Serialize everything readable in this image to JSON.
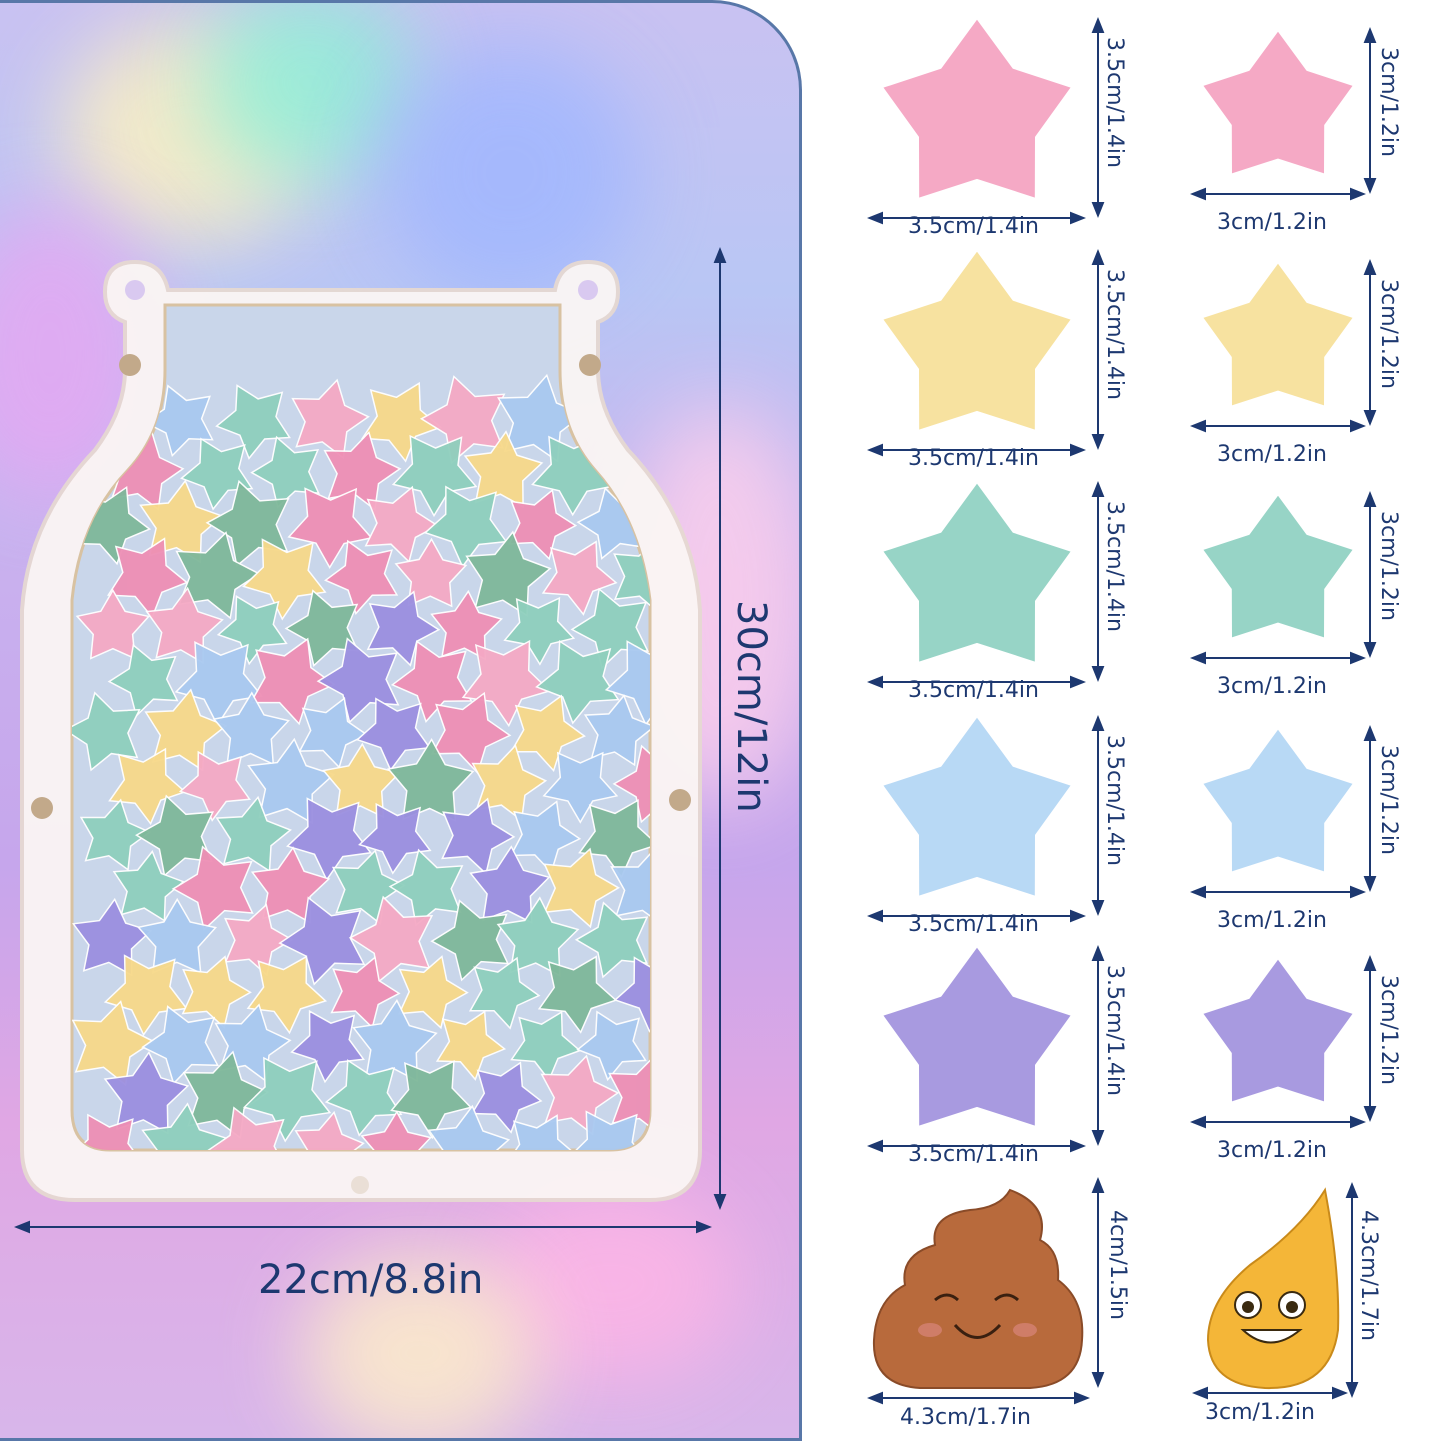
{
  "jar": {
    "height_label": "30cm/12in",
    "width_label": "22cm/8.8in"
  },
  "pieces": [
    {
      "color": "#f5a9c5",
      "shape": "star",
      "width_label": "3.5cm/1.4in",
      "height_label": "3.5cm/1.4in"
    },
    {
      "color": "#f5a9c5",
      "shape": "star",
      "width_label": "3cm/1.2in",
      "height_label": "3cm/1.2in"
    },
    {
      "color": "#f7e2a0",
      "shape": "star",
      "width_label": "3.5cm/1.4in",
      "height_label": "3.5cm/1.4in"
    },
    {
      "color": "#f7e2a0",
      "shape": "star",
      "width_label": "3cm/1.2in",
      "height_label": "3cm/1.2in"
    },
    {
      "color": "#97d4c6",
      "shape": "star",
      "width_label": "3.5cm/1.4in",
      "height_label": "3.5cm/1.4in"
    },
    {
      "color": "#97d4c6",
      "shape": "star",
      "width_label": "3cm/1.2in",
      "height_label": "3cm/1.2in"
    },
    {
      "color": "#b8d9f5",
      "shape": "star",
      "width_label": "3.5cm/1.4in",
      "height_label": "3.5cm/1.4in"
    },
    {
      "color": "#b8d9f5",
      "shape": "star",
      "width_label": "3cm/1.2in",
      "height_label": "3cm/1.2in"
    },
    {
      "color": "#a89ae0",
      "shape": "star",
      "width_label": "3.5cm/1.4in",
      "height_label": "3.5cm/1.4in"
    },
    {
      "color": "#a89ae0",
      "shape": "star",
      "width_label": "3cm/1.2in",
      "height_label": "3cm/1.2in"
    },
    {
      "color": "#b86a3c",
      "shape": "poop-emoji",
      "width_label": "4.3cm/1.7in",
      "height_label": "4cm/1.5in"
    },
    {
      "color": "#f4b638",
      "shape": "drop-emoji",
      "width_label": "3cm/1.2in",
      "height_label": "4.3cm/1.7in"
    }
  ],
  "colors": {
    "measure_line": "#1d3870",
    "panel_border": "#5877a8"
  }
}
